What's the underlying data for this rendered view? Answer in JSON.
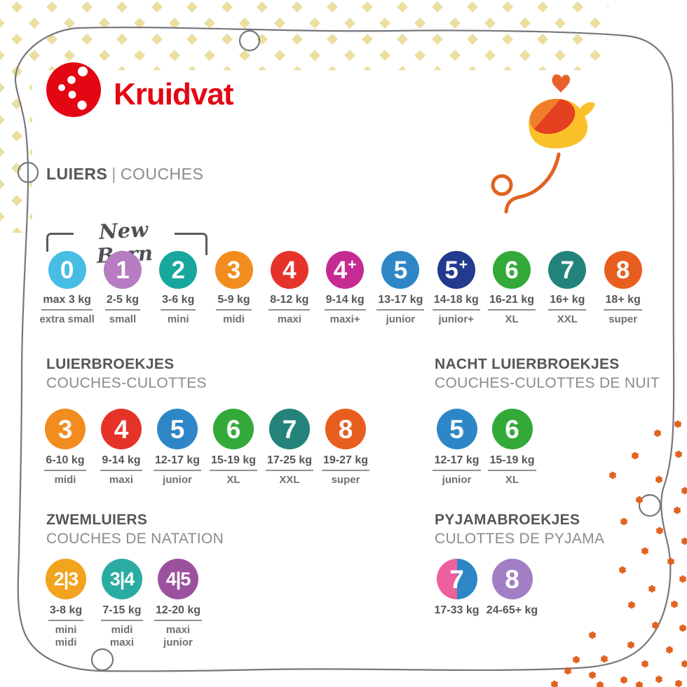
{
  "brand": {
    "name": "Kruidvat"
  },
  "title": {
    "nl": "LUIERS",
    "sep": "|",
    "fr": "COUCHES"
  },
  "newborn": {
    "label": "New Born"
  },
  "sections": {
    "luiers": {
      "items": [
        {
          "size": "0",
          "color": "#47bde4",
          "weight": "max 3 kg",
          "names": [
            "extra small"
          ]
        },
        {
          "size": "1",
          "color": "#b77cc1",
          "weight": "2-5 kg",
          "names": [
            "small"
          ]
        },
        {
          "size": "2",
          "color": "#17a79c",
          "weight": "3-6 kg",
          "names": [
            "mini"
          ]
        },
        {
          "size": "3",
          "color": "#f28c1e",
          "weight": "5-9 kg",
          "names": [
            "midi"
          ]
        },
        {
          "size": "4",
          "color": "#e6332a",
          "weight": "8-12 kg",
          "names": [
            "maxi"
          ]
        },
        {
          "size": "4+",
          "color": "#c62b93",
          "weight": "9-14 kg",
          "names": [
            "maxi+"
          ]
        },
        {
          "size": "5",
          "color": "#2e86c6",
          "weight": "13-17 kg",
          "names": [
            "junior"
          ]
        },
        {
          "size": "5+",
          "color": "#243a8e",
          "weight": "14-18 kg",
          "names": [
            "junior+"
          ]
        },
        {
          "size": "6",
          "color": "#33a939",
          "weight": "16-21 kg",
          "names": [
            "XL"
          ]
        },
        {
          "size": "7",
          "color": "#23837a",
          "weight": "16+ kg",
          "names": [
            "XXL"
          ]
        },
        {
          "size": "8",
          "color": "#e85e1e",
          "weight": "18+ kg",
          "names": [
            "super"
          ]
        }
      ]
    },
    "luierbroekjes": {
      "title_nl": "LUIERBROEKJES",
      "title_fr": "COUCHES-CULOTTES",
      "items": [
        {
          "size": "3",
          "color": "#f28c1e",
          "weight": "6-10 kg",
          "names": [
            "midi"
          ]
        },
        {
          "size": "4",
          "color": "#e6332a",
          "weight": "9-14 kg",
          "names": [
            "maxi"
          ]
        },
        {
          "size": "5",
          "color": "#2e86c6",
          "weight": "12-17 kg",
          "names": [
            "junior"
          ]
        },
        {
          "size": "6",
          "color": "#33a939",
          "weight": "15-19 kg",
          "names": [
            "XL"
          ]
        },
        {
          "size": "7",
          "color": "#23837a",
          "weight": "17-25 kg",
          "names": [
            "XXL"
          ]
        },
        {
          "size": "8",
          "color": "#e85e1e",
          "weight": "19-27 kg",
          "names": [
            "super"
          ]
        }
      ]
    },
    "nacht": {
      "title_nl": "NACHT LUIERBROEKJES",
      "title_fr": "COUCHES-CULOTTES DE NUIT",
      "items": [
        {
          "size": "5",
          "color": "#2e86c6",
          "weight": "12-17 kg",
          "names": [
            "junior"
          ]
        },
        {
          "size": "6",
          "color": "#33a939",
          "weight": "15-19 kg",
          "names": [
            "XL"
          ]
        }
      ]
    },
    "zwem": {
      "title_nl": "ZWEMLUIERS",
      "title_fr": "COUCHES DE NATATION",
      "items": [
        {
          "size": "2|3",
          "color": "#f2a41f",
          "weight": "3-8 kg",
          "names": [
            "mini",
            "midi"
          ]
        },
        {
          "size": "3|4",
          "color": "#2baca2",
          "weight": "7-15 kg",
          "names": [
            "midi",
            "maxi"
          ]
        },
        {
          "size": "4|5",
          "color": "#9c519f",
          "weight": "12-20 kg",
          "names": [
            "maxi",
            "junior"
          ]
        }
      ]
    },
    "pyjama": {
      "title_nl": "PYJAMABROEKJES",
      "title_fr": "CULOTTES DE PYJAMA",
      "items": [
        {
          "size": "7",
          "color": "#ee5f9e",
          "color2": "#2e86c6",
          "weight": "17-33 kg",
          "names": []
        },
        {
          "size": "8",
          "color": "#a27fc4",
          "weight": "24-65+ kg",
          "names": []
        }
      ]
    }
  },
  "decor": {
    "accent_red": "#e30613",
    "diamond": "#ebdfa0",
    "flower": "#e2621f",
    "border": "#76777a",
    "bird_yellow": "#fbc12b",
    "bird_orange": "#ef7d2a",
    "bird_red": "#e5401f",
    "heart": "#e8612b"
  }
}
